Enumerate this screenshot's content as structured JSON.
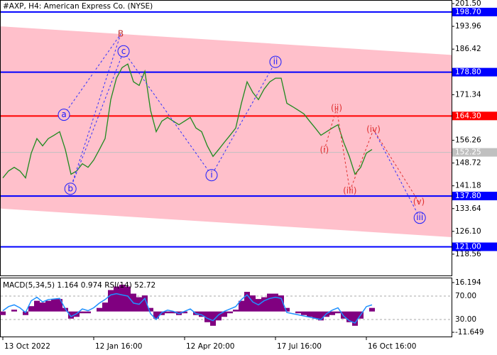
{
  "chart_data": [
    {
      "type": "line",
      "title": "#AXP, H4:  American Express Co. (NYSE)",
      "color": "#1e8a1e",
      "values": [
        143.8,
        146.1,
        147.3,
        146.1,
        143.8,
        152.0,
        156.8,
        154.4,
        156.8,
        157.9,
        159.1,
        153.2,
        145.0,
        146.1,
        148.5,
        147.3,
        149.7,
        153.2,
        156.8,
        169.7,
        176.8,
        180.3,
        181.5,
        175.6,
        174.4,
        179.1,
        166.2,
        159.1,
        162.6,
        163.8,
        162.6,
        161.4,
        162.6,
        163.8,
        160.3,
        159.1,
        154.4,
        150.9,
        153.2,
        155.6,
        157.9,
        160.3,
        168.5,
        175.6,
        172.1,
        169.7,
        173.2,
        175.6,
        176.8,
        176.8,
        168.5,
        167.4,
        166.2,
        165.0,
        162.6,
        160.3,
        157.9,
        159.1,
        160.3,
        161.4,
        155.6,
        150.9,
        145.0,
        147.3,
        152.0,
        153.2
      ],
      "xlim": [
        -0.5,
        79
      ],
      "xticks": [
        {
          "value": 0,
          "label": "13 Oct 2022"
        },
        {
          "value": 16,
          "label": "12 Jan 16:00"
        },
        {
          "value": 32,
          "label": "12 Apr 20:00"
        },
        {
          "value": 48,
          "label": "17 Jul 16:00"
        },
        {
          "value": 64,
          "label": "16 Oct 16:00"
        }
      ],
      "ylim": [
        111.5,
        202.68
      ],
      "yticks": [
        {
          "value": 201.5,
          "label": "201.50"
        },
        {
          "value": 193.96,
          "label": "193.96"
        },
        {
          "value": 186.42,
          "label": "186.42"
        },
        {
          "value": 171.34,
          "label": "171.34"
        },
        {
          "value": 156.26,
          "label": "156.26"
        },
        {
          "value": 148.72,
          "label": "148.72"
        },
        {
          "value": 141.18,
          "label": "141.18"
        },
        {
          "value": 133.64,
          "label": "133.64"
        },
        {
          "value": 126.1,
          "label": "126.10"
        },
        {
          "value": 118.56,
          "label": "118.56"
        }
      ],
      "levels": [
        {
          "value": 198.7,
          "label": "198.70",
          "color": "#0000ff"
        },
        {
          "value": 178.8,
          "label": "178.80",
          "color": "#0000ff"
        },
        {
          "value": 164.3,
          "label": "164.30",
          "color": "#ff0000"
        },
        {
          "value": 137.8,
          "label": "137.80",
          "color": "#0000ff"
        },
        {
          "value": 121,
          "label": "121.00",
          "color": "#0000ff"
        }
      ],
      "current": {
        "value": 152.25,
        "label": "152.25",
        "color": "#c0c0c0"
      },
      "channel": {
        "upper": [
          193.96,
          184.5
        ],
        "lower": [
          133.64,
          124.2
        ],
        "color": "#ffc0cb"
      },
      "annotations": [
        {
          "text": "B",
          "x": 20.75,
          "y": 191.4,
          "color": "#c03030",
          "circled": false
        },
        {
          "text": "a",
          "x": 10.75,
          "y": 164.7,
          "color": "#1a1aff",
          "circled": true
        },
        {
          "text": "b",
          "x": 11.9,
          "y": 140.2,
          "color": "#1a1aff",
          "circled": true
        },
        {
          "text": "c",
          "x": 21.25,
          "y": 185.7,
          "color": "#1a1aff",
          "circled": true
        },
        {
          "text": "i",
          "x": 36.75,
          "y": 144.7,
          "color": "#1a1aff",
          "circled": true
        },
        {
          "text": "ii",
          "x": 48,
          "y": 182.2,
          "color": "#1a1aff",
          "circled": true
        },
        {
          "text": "iii",
          "x": 73.4,
          "y": 130.6,
          "color": "#1a1aff",
          "circled": true
        },
        {
          "text": "(i)",
          "x": 56.6,
          "y": 153.0,
          "color": "#e03030",
          "circled": false
        },
        {
          "text": "(ii)",
          "x": 58.75,
          "y": 166.9,
          "color": "#e03030",
          "circled": false
        },
        {
          "text": "(iii)",
          "x": 61.1,
          "y": 139.5,
          "color": "#e03030",
          "circled": false
        },
        {
          "text": "(iv)",
          "x": 65.25,
          "y": 159.8,
          "color": "#e03030",
          "circled": false
        },
        {
          "text": "(v)",
          "x": 73.25,
          "y": 135.8,
          "color": "#e03030",
          "circled": false
        }
      ]
    },
    {
      "type": "macd_rsi",
      "label": "MACD(5,34,5) 1.164 0.974 RSI(14) 52.72",
      "color": "#800080",
      "rsi_color": "#1e90ff",
      "macd": [
        -2,
        0,
        1,
        0,
        -2,
        3,
        6,
        5,
        6,
        7,
        7,
        2,
        -4,
        -3,
        -1,
        -1,
        0,
        2,
        5,
        12,
        14,
        15,
        14,
        10,
        8,
        9,
        2,
        -4,
        -2,
        -1,
        -1,
        -2,
        -1,
        0,
        -2,
        -3,
        -6,
        -8,
        -5,
        -3,
        -1,
        1,
        6,
        11,
        9,
        7,
        8,
        10,
        10,
        9,
        2,
        0,
        -1,
        -2,
        -3,
        -4,
        -5,
        -3,
        -2,
        -1,
        -4,
        -6,
        -8,
        -4,
        0,
        2
      ],
      "rsi": [
        45,
        52,
        55,
        50,
        42,
        62,
        68,
        60,
        64,
        65,
        66,
        48,
        35,
        40,
        48,
        45,
        50,
        58,
        64,
        72,
        74,
        72,
        70,
        58,
        56,
        66,
        40,
        30,
        42,
        46,
        44,
        40,
        44,
        48,
        40,
        38,
        32,
        28,
        38,
        44,
        48,
        52,
        64,
        72,
        60,
        55,
        62,
        66,
        68,
        66,
        42,
        40,
        38,
        36,
        34,
        32,
        30,
        40,
        46,
        50,
        36,
        28,
        24,
        38,
        52,
        55
      ],
      "ylim": [
        -11.649,
        16.194
      ],
      "yticks": [
        {
          "value": 16.194,
          "label": "16.194"
        },
        {
          "value": -11.649,
          "label": "-11.649"
        }
      ],
      "y2lim": [
        8.2,
        93
      ],
      "y2ticks": [
        {
          "value": 70,
          "label": "70.00"
        },
        {
          "value": 30,
          "label": "30.00"
        }
      ]
    }
  ]
}
